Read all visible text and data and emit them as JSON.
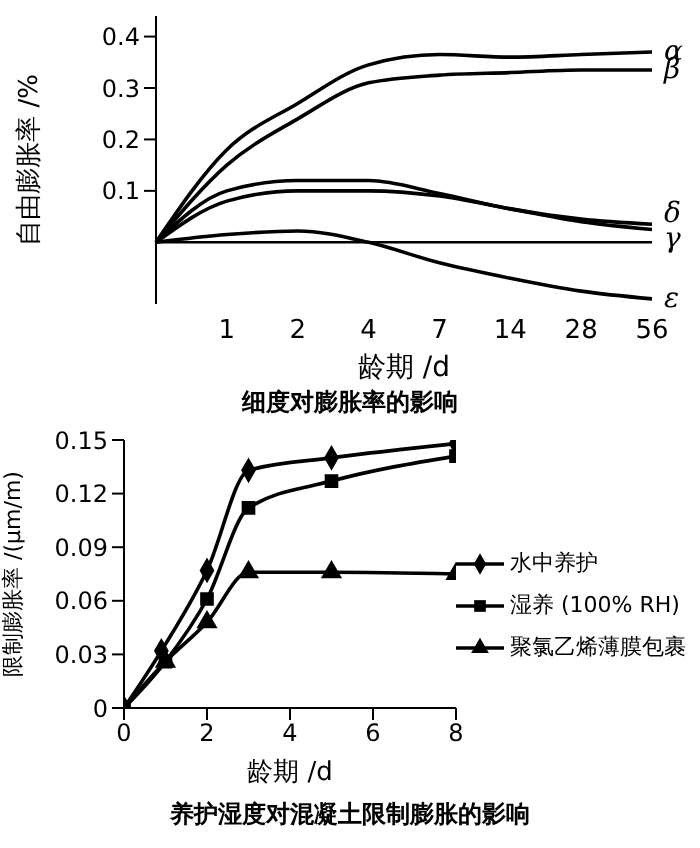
{
  "chart_data": [
    {
      "type": "line",
      "title": "细度对膨胀率的影响",
      "xlabel": "龄期 /d",
      "ylabel": "自由膨胀率 /%",
      "categories": [
        null,
        "1",
        "2",
        "4",
        "7",
        "14",
        "28",
        "56"
      ],
      "ylim": [
        -0.12,
        0.44
      ],
      "yticks": [
        0.1,
        0.2,
        0.3,
        0.4
      ],
      "ref_lines": [
        {
          "axis": "y",
          "value": 0,
          "color": "#000000"
        }
      ],
      "grid": false,
      "legend": false,
      "marker": "none",
      "line_style": "solid",
      "series": [
        {
          "name": "α",
          "color": "#000000",
          "values": [
            0,
            0.18,
            0.27,
            0.345,
            0.365,
            0.36,
            0.365,
            0.37
          ]
        },
        {
          "name": "β",
          "color": "#000000",
          "values": [
            0,
            0.15,
            0.24,
            0.31,
            0.325,
            0.33,
            0.335,
            0.335
          ]
        },
        {
          "name": "δ",
          "color": "#000000",
          "values": [
            0,
            0.1,
            0.12,
            0.12,
            0.095,
            0.065,
            0.045,
            0.035
          ]
        },
        {
          "name": "γ",
          "color": "#000000",
          "values": [
            0,
            0.08,
            0.1,
            0.1,
            0.09,
            0.065,
            0.04,
            0.025
          ]
        },
        {
          "name": "ε",
          "color": "#000000",
          "values": [
            0,
            0.015,
            0.022,
            0.0,
            -0.04,
            -0.07,
            -0.095,
            -0.11
          ]
        }
      ]
    },
    {
      "type": "line",
      "title": "养护湿度对混凝土限制膨胀的影响",
      "xlabel": "龄期 /d",
      "ylabel": "限制膨胀率 /(μm/m)",
      "xlim": [
        0,
        8
      ],
      "xticks": [
        0,
        2,
        4,
        6,
        8
      ],
      "ylim": [
        0,
        0.15
      ],
      "yticks": [
        0,
        0.03,
        0.06,
        0.09,
        0.12,
        0.15
      ],
      "grid": false,
      "legend": "right",
      "line_style": "solid",
      "series": [
        {
          "name": "水中养护",
          "color": "#000000",
          "marker": "diamond",
          "x": [
            0,
            0.9,
            2,
            3,
            5,
            8
          ],
          "values": [
            0,
            0.032,
            0.077,
            0.133,
            0.14,
            0.148
          ]
        },
        {
          "name": "湿养 (100% RH)",
          "color": "#000000",
          "marker": "square",
          "x": [
            0,
            1,
            2,
            3,
            5,
            8
          ],
          "values": [
            0,
            0.026,
            0.061,
            0.112,
            0.127,
            0.141
          ]
        },
        {
          "name": "聚氯乙烯薄膜包裹",
          "color": "#000000",
          "marker": "triangle",
          "x": [
            0,
            1,
            2,
            3,
            5,
            8
          ],
          "values": [
            0,
            0.026,
            0.048,
            0.076,
            0.076,
            0.075
          ]
        }
      ]
    }
  ]
}
